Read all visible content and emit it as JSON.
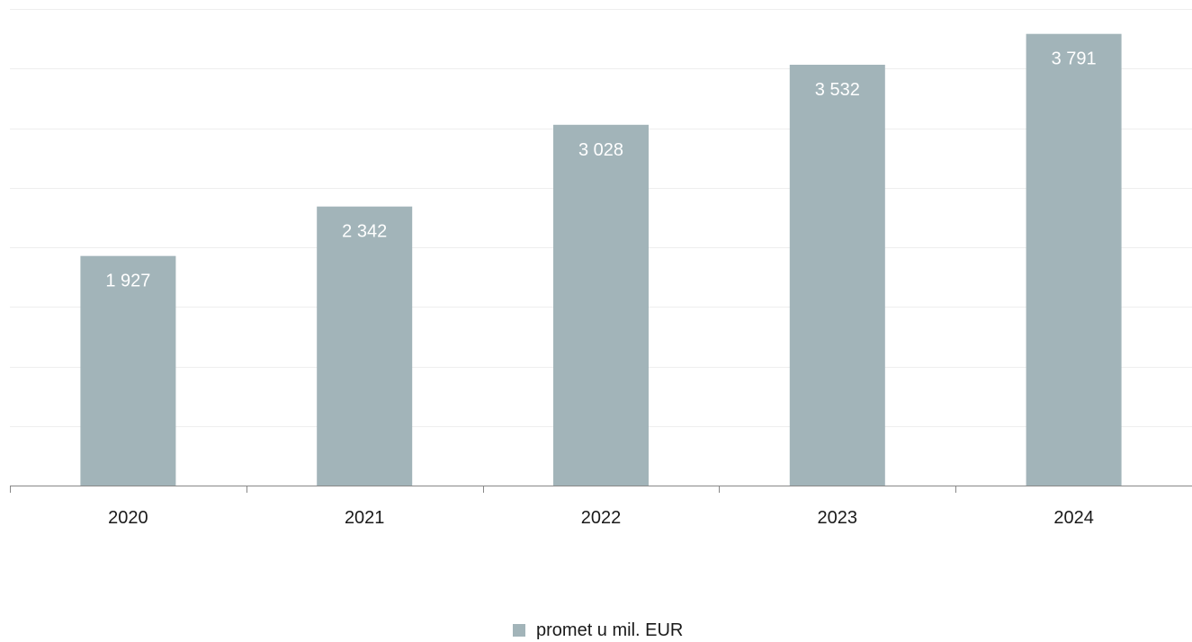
{
  "chart_data": {
    "type": "bar",
    "categories": [
      "2020",
      "2021",
      "2022",
      "2023",
      "2024"
    ],
    "values": [
      1927,
      2342,
      3028,
      3532,
      3791
    ],
    "value_labels": [
      "1 927",
      "2 342",
      "3 028",
      "3 532",
      "3 791"
    ],
    "series": [
      {
        "name": "promet u mil. EUR",
        "values": [
          1927,
          2342,
          3028,
          3532,
          3791
        ]
      }
    ],
    "title": "",
    "xlabel": "",
    "ylabel": "",
    "ylim": [
      0,
      4000
    ],
    "y_gridline_step": 500,
    "grid": true,
    "legend_position": "bottom-center",
    "colors": {
      "bar": "#a2b4b9",
      "grid": "#eeeeee",
      "axis": "#888888",
      "text": "#1a1a1a",
      "value_label": "#ffffff"
    }
  }
}
